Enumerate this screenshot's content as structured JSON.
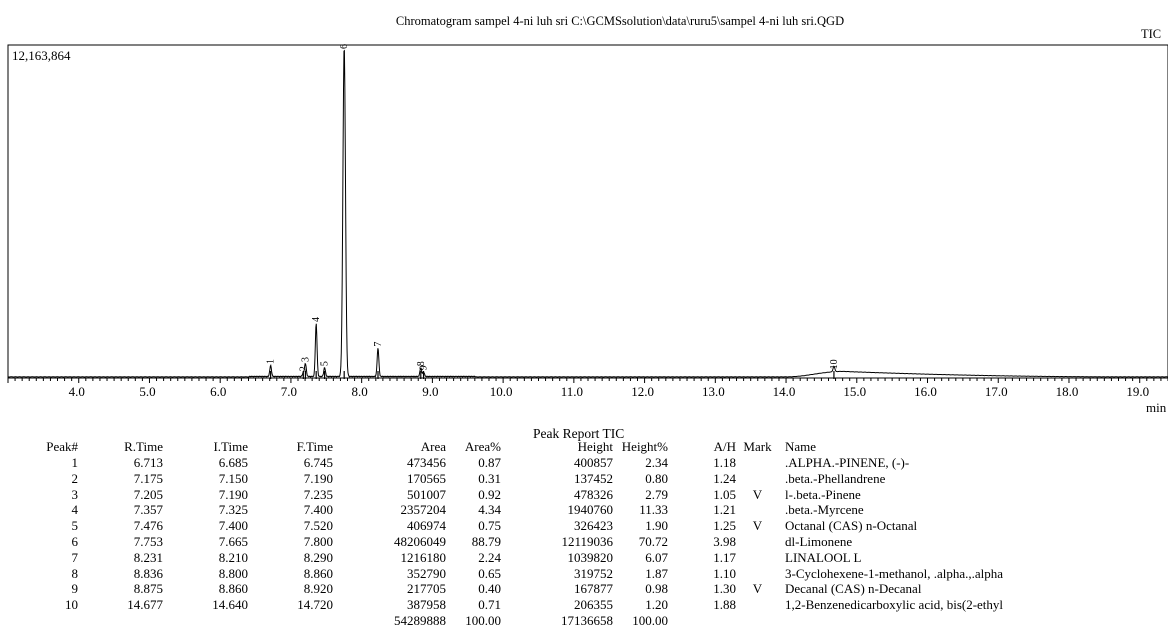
{
  "chromatogram": {
    "title": "Chromatogram sampel 4-ni luh sri C:\\GCMSsolution\\data\\ruru5\\sampel 4-ni luh sri.QGD",
    "channel_label": "TIC",
    "max_intensity_label": "12,163,864",
    "x_unit": "min"
  },
  "chart_data": {
    "type": "line",
    "title": "Chromatogram sampel 4-ni luh sri C:\\GCMSsolution\\data\\ruru5\\sampel 4-ni luh sri.QGD",
    "xlabel": "min",
    "ylabel": "",
    "xlim": [
      3.0,
      19.4
    ],
    "ylim": [
      0,
      12163864
    ],
    "x_ticks": [
      4.0,
      5.0,
      6.0,
      7.0,
      8.0,
      9.0,
      10.0,
      11.0,
      12.0,
      13.0,
      14.0,
      15.0,
      16.0,
      17.0,
      18.0,
      19.0
    ],
    "x_tick_labels": [
      "4.0",
      "5.0",
      "6.0",
      "7.0",
      "8.0",
      "9.0",
      "10.0",
      "11.0",
      "12.0",
      "13.0",
      "14.0",
      "15.0",
      "16.0",
      "17.0",
      "18.0",
      "19.0"
    ],
    "grid": false,
    "peaks": [
      {
        "label": "1",
        "rt": 6.713,
        "height": 400857
      },
      {
        "label": "2",
        "rt": 7.175,
        "height": 137452
      },
      {
        "label": "3",
        "rt": 7.205,
        "height": 478326
      },
      {
        "label": "4",
        "rt": 7.357,
        "height": 1940760
      },
      {
        "label": "5",
        "rt": 7.476,
        "height": 326423
      },
      {
        "label": "6",
        "rt": 7.753,
        "height": 12119036
      },
      {
        "label": "7",
        "rt": 8.231,
        "height": 1039820
      },
      {
        "label": "8",
        "rt": 8.836,
        "height": 319752
      },
      {
        "label": "9",
        "rt": 8.875,
        "height": 167877
      },
      {
        "label": "10",
        "rt": 14.677,
        "height": 206355
      }
    ],
    "baseline_hump": {
      "start": 14.0,
      "peak": 14.8,
      "end": 18.8,
      "height": 200000
    }
  },
  "report": {
    "title": "Peak Report TIC",
    "headers": [
      "Peak#",
      "R.Time",
      "I.Time",
      "F.Time",
      "Area",
      "Area%",
      "Height",
      "Height%",
      "A/H",
      "Mark",
      "Name"
    ],
    "rows": [
      [
        "1",
        "6.713",
        "6.685",
        "6.745",
        "473456",
        "0.87",
        "400857",
        "2.34",
        "1.18",
        "",
        ".ALPHA.-PINENE, (-)-"
      ],
      [
        "2",
        "7.175",
        "7.150",
        "7.190",
        "170565",
        "0.31",
        "137452",
        "0.80",
        "1.24",
        "",
        ".beta.-Phellandrene"
      ],
      [
        "3",
        "7.205",
        "7.190",
        "7.235",
        "501007",
        "0.92",
        "478326",
        "2.79",
        "1.05",
        "V",
        "l-.beta.-Pinene"
      ],
      [
        "4",
        "7.357",
        "7.325",
        "7.400",
        "2357204",
        "4.34",
        "1940760",
        "11.33",
        "1.21",
        "",
        ".beta.-Myrcene"
      ],
      [
        "5",
        "7.476",
        "7.400",
        "7.520",
        "406974",
        "0.75",
        "326423",
        "1.90",
        "1.25",
        "V",
        "Octanal (CAS) n-Octanal"
      ],
      [
        "6",
        "7.753",
        "7.665",
        "7.800",
        "48206049",
        "88.79",
        "12119036",
        "70.72",
        "3.98",
        "",
        "dl-Limonene"
      ],
      [
        "7",
        "8.231",
        "8.210",
        "8.290",
        "1216180",
        "2.24",
        "1039820",
        "6.07",
        "1.17",
        "",
        "LINALOOL L"
      ],
      [
        "8",
        "8.836",
        "8.800",
        "8.860",
        "352790",
        "0.65",
        "319752",
        "1.87",
        "1.10",
        "",
        "3-Cyclohexene-1-methanol, .alpha.,.alpha"
      ],
      [
        "9",
        "8.875",
        "8.860",
        "8.920",
        "217705",
        "0.40",
        "167877",
        "0.98",
        "1.30",
        "V",
        "Decanal (CAS) n-Decanal"
      ],
      [
        "10",
        "14.677",
        "14.640",
        "14.720",
        "387958",
        "0.71",
        "206355",
        "1.20",
        "1.88",
        "",
        "1,2-Benzenedicarboxylic acid, bis(2-ethyl"
      ]
    ],
    "totals": [
      "",
      "",
      "",
      "",
      "54289888",
      "100.00",
      "17136658",
      "100.00",
      "",
      "",
      ""
    ]
  }
}
